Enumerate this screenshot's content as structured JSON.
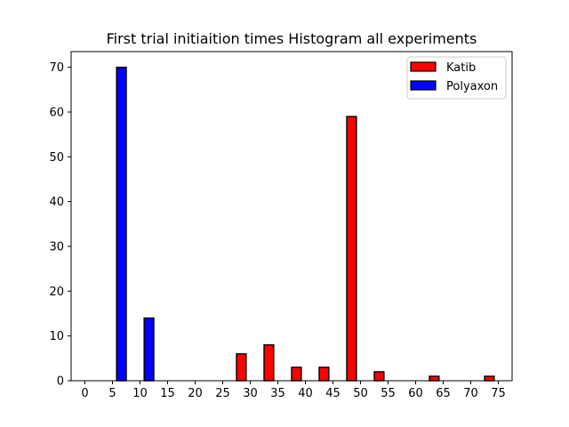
{
  "chart_data": {
    "type": "bar",
    "title": "First trial initiaition times Histogram all experiments",
    "xlabel": "",
    "ylabel": "",
    "x_ticks": [
      "0",
      "5",
      "10",
      "15",
      "20",
      "25",
      "30",
      "35",
      "40",
      "45",
      "50",
      "55",
      "60",
      "65",
      "70",
      "75"
    ],
    "y_ticks": [
      "0",
      "10",
      "20",
      "30",
      "40",
      "50",
      "60",
      "70"
    ],
    "xlim": [
      -2.5,
      77.5
    ],
    "ylim": [
      0,
      73.5
    ],
    "bin_edges": [
      0,
      5,
      10,
      15,
      20,
      25,
      30,
      35,
      40,
      45,
      50,
      55,
      60,
      65,
      70,
      75
    ],
    "series": [
      {
        "name": "Polyaxon",
        "color": "#0000ff",
        "values": [
          0,
          70,
          14,
          0,
          0,
          0,
          0,
          0,
          0,
          0,
          0,
          0,
          0,
          0,
          0
        ]
      },
      {
        "name": "Katib",
        "color": "#ff0000",
        "values": [
          0,
          0,
          0,
          0,
          0,
          6,
          8,
          3,
          3,
          59,
          2,
          0,
          1,
          0,
          1
        ]
      }
    ],
    "legend_position": "top-right",
    "grid": false
  }
}
